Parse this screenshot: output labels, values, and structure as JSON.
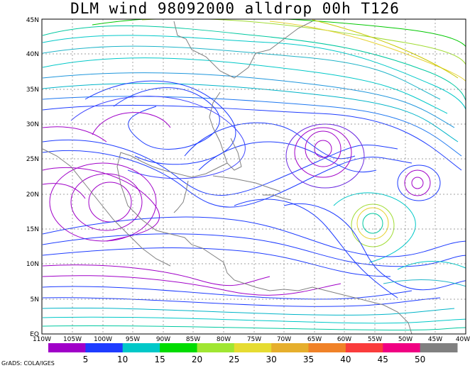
{
  "title": "DLM wind 98092000 alldrop 00h T126",
  "credit": "GrADS: COLA/IGES",
  "map": {
    "lon_labels": [
      "110W",
      "105W",
      "100W",
      "95W",
      "90W",
      "85W",
      "80W",
      "75W",
      "70W",
      "65W",
      "60W",
      "55W",
      "50W",
      "45W",
      "40W"
    ],
    "lat_labels": [
      "EQ",
      "5N",
      "10N",
      "15N",
      "20N",
      "25N",
      "30N",
      "35N",
      "40N",
      "45N"
    ],
    "lon_range": [
      -110,
      -40
    ],
    "lat_range": [
      0,
      45
    ],
    "grid": true
  },
  "colorbar": {
    "colors": [
      "#a000c8",
      "#1e3cff",
      "#00c8c8",
      "#00dc00",
      "#a0e632",
      "#e6dc32",
      "#e6af2d",
      "#f08228",
      "#fa3c3c",
      "#f00082",
      "#808080"
    ],
    "labels": [
      "5",
      "10",
      "15",
      "20",
      "25",
      "30",
      "35",
      "40",
      "45",
      "50"
    ]
  },
  "chart_data": {
    "type": "streamline",
    "title": "DLM wind 98092000 alldrop 00h T126",
    "x_range": [
      -110,
      -40
    ],
    "y_range": [
      0,
      45
    ],
    "units_scale": [
      5,
      10,
      15,
      20,
      25,
      30,
      35,
      40,
      45,
      50
    ]
  }
}
